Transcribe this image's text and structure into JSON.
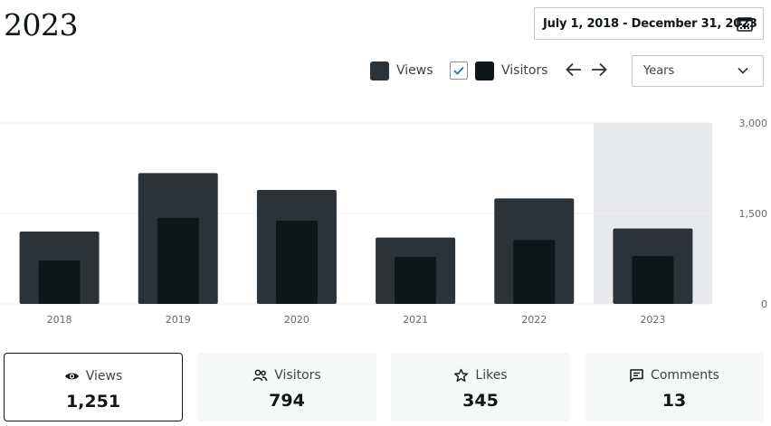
{
  "header": {
    "title": "2023",
    "date_range": "July 1, 2018 - December 31, 2023"
  },
  "legend": {
    "views_label": "Views",
    "visitors_label": "Visitors",
    "visitors_checked": true
  },
  "period_select": {
    "selected": "Years"
  },
  "colors": {
    "views": "#2c3338",
    "visitors": "#101517",
    "highlight": "#e8e9ea",
    "gridline": "#f0f0f1",
    "axis_text": "#646970"
  },
  "chart_data": {
    "type": "bar",
    "categories": [
      "2018",
      "2019",
      "2020",
      "2021",
      "2022",
      "2023"
    ],
    "series": [
      {
        "name": "Views",
        "values": [
          1200,
          2170,
          1890,
          1100,
          1750,
          1251
        ]
      },
      {
        "name": "Visitors",
        "values": [
          720,
          1430,
          1380,
          780,
          1060,
          794
        ]
      }
    ],
    "highlighted_category": "2023",
    "y_ticks": [
      "3,000",
      "1,500",
      "0"
    ],
    "ylim": [
      0,
      3000
    ],
    "grid": true
  },
  "stats": [
    {
      "label": "Views",
      "value": "1,251",
      "icon": "eye-icon",
      "active": true
    },
    {
      "label": "Visitors",
      "value": "794",
      "icon": "people-icon",
      "active": false
    },
    {
      "label": "Likes",
      "value": "345",
      "icon": "star-icon",
      "active": false
    },
    {
      "label": "Comments",
      "value": "13",
      "icon": "comment-icon",
      "active": false
    }
  ]
}
